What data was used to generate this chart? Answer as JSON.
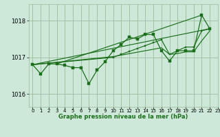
{
  "title": "Graphe pression niveau de la mer (hPa)",
  "background_color": "#cde8d8",
  "grid_color": "#99bb99",
  "line_color": "#1a6e1a",
  "marker_color": "#1a6e1a",
  "xlim": [
    -0.5,
    23
  ],
  "ylim": [
    1015.65,
    1018.45
  ],
  "yticks": [
    1016,
    1017,
    1018
  ],
  "xticks": [
    0,
    1,
    2,
    3,
    4,
    5,
    6,
    7,
    8,
    9,
    10,
    11,
    12,
    13,
    14,
    15,
    16,
    17,
    18,
    19,
    20,
    21,
    22,
    23
  ],
  "series_main": {
    "x": [
      0,
      1,
      2,
      3,
      4,
      5,
      6,
      7,
      8,
      9,
      10,
      11,
      12,
      13,
      14,
      15,
      16,
      17,
      18,
      19,
      20,
      21,
      22
    ],
    "y": [
      1016.8,
      1016.55,
      1016.82,
      1016.82,
      1016.78,
      1016.72,
      1016.72,
      1016.28,
      1016.65,
      1016.88,
      1017.18,
      1017.35,
      1017.55,
      1017.5,
      1017.62,
      1017.62,
      1017.18,
      1016.9,
      1017.18,
      1017.18,
      1017.18,
      1018.15,
      1017.78
    ]
  },
  "trend_line1": {
    "x": [
      0,
      22
    ],
    "y": [
      1016.8,
      1017.78
    ]
  },
  "trend_line2": {
    "x": [
      3,
      21
    ],
    "y": [
      1016.82,
      1018.15
    ]
  },
  "series_smooth1": {
    "x": [
      0,
      10,
      11,
      12,
      13,
      14,
      15,
      16,
      17,
      18,
      19,
      20,
      21,
      22
    ],
    "y": [
      1016.8,
      1017.0,
      1017.08,
      1017.16,
      1017.24,
      1017.32,
      1017.4,
      1017.48,
      1017.08,
      1017.18,
      1017.28,
      1017.28,
      1017.72,
      1017.78
    ]
  },
  "series_smooth2": {
    "x": [
      0,
      10,
      11,
      12,
      13,
      14,
      15,
      16,
      17,
      18,
      19,
      20,
      21,
      22
    ],
    "y": [
      1016.8,
      1017.02,
      1017.06,
      1017.1,
      1017.14,
      1017.18,
      1017.22,
      1017.26,
      1017.08,
      1017.1,
      1017.15,
      1017.15,
      1017.45,
      1017.72
    ]
  }
}
